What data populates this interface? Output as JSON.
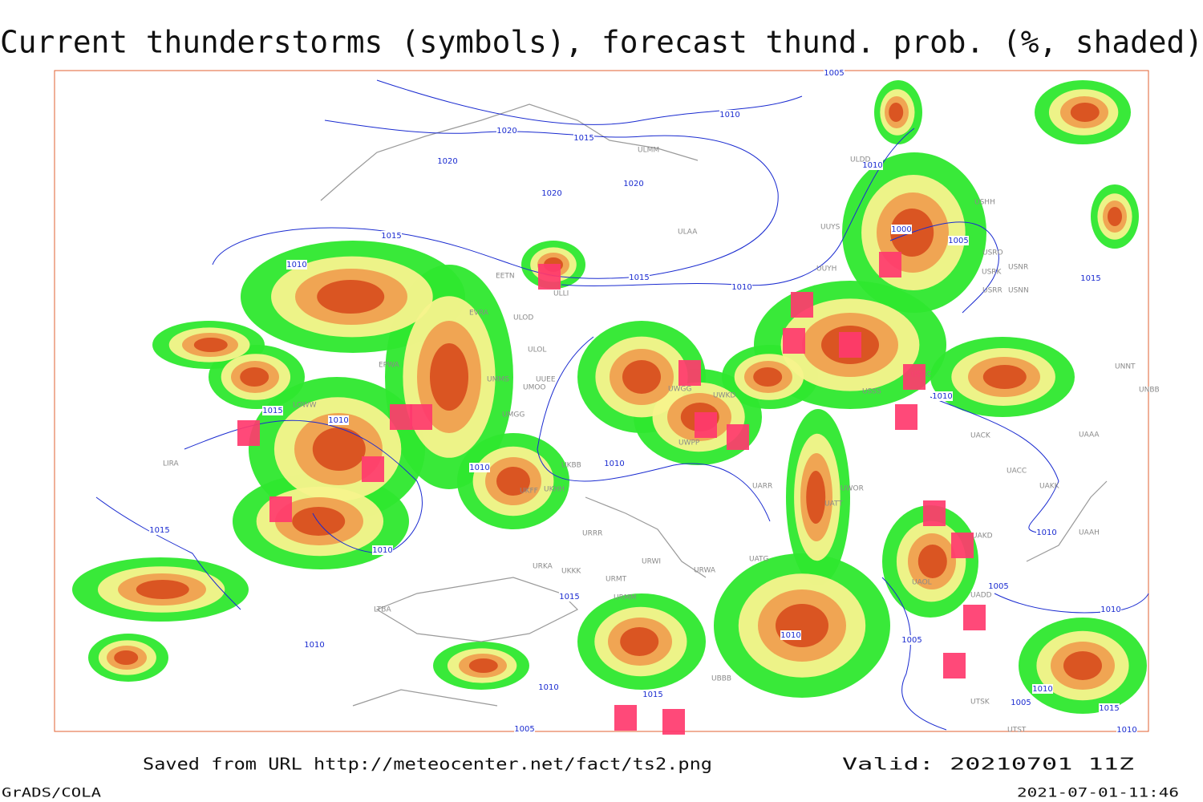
{
  "title": "Current thunderstorms (symbols), forecast thund. prob. (%, shaded)",
  "footer": {
    "source": "Saved from URL  http://meteocenter.net/fact/ts2.png",
    "valid": "Valid: 20210701 11Z",
    "software": "GrADS/COLA",
    "timestamp": "2021-07-01-11:46"
  },
  "map": {
    "isobar_labels": [
      "1020",
      "1015",
      "1020",
      "1020",
      "1020",
      "1010",
      "1005",
      "1015",
      "1010",
      "1015",
      "1010",
      "1010",
      "1010",
      "1010",
      "1000",
      "1005",
      "1010",
      "1015",
      "1015",
      "1010",
      "1010",
      "1005",
      "1015",
      "1010",
      "1015",
      "1010",
      "1010",
      "1005",
      "1010",
      "1015",
      "1005",
      "1010",
      "1005",
      "1015",
      "1010",
      "1010"
    ],
    "station_labels": [
      "ULLI",
      "EETN",
      "EVRA",
      "ULOD",
      "ULOL",
      "UMMS",
      "UMOO",
      "UMGG",
      "UUEE",
      "UKHH",
      "UKBB",
      "UKFF",
      "URRR",
      "URKA",
      "UKKK",
      "URMT",
      "URMM",
      "URWI",
      "URWA",
      "UATG",
      "UARR",
      "UWOR",
      "UATT",
      "UAKD",
      "UAOL",
      "UADD",
      "UACC",
      "UAKK",
      "UAAA",
      "UAAH",
      "UACK",
      "UNNT",
      "UNBB",
      "USNR",
      "USNN",
      "USRR",
      "USRK",
      "USRO",
      "USHH",
      "ULAA",
      "ULMM",
      "ULDD",
      "UUYS",
      "UUYH",
      "LOWW",
      "LIRA",
      "EPWA",
      "LTBA",
      "UBBB",
      "UTSK",
      "UTST",
      "UWKD",
      "UWGG",
      "UWPP",
      "USSS",
      "USCC"
    ]
  }
}
